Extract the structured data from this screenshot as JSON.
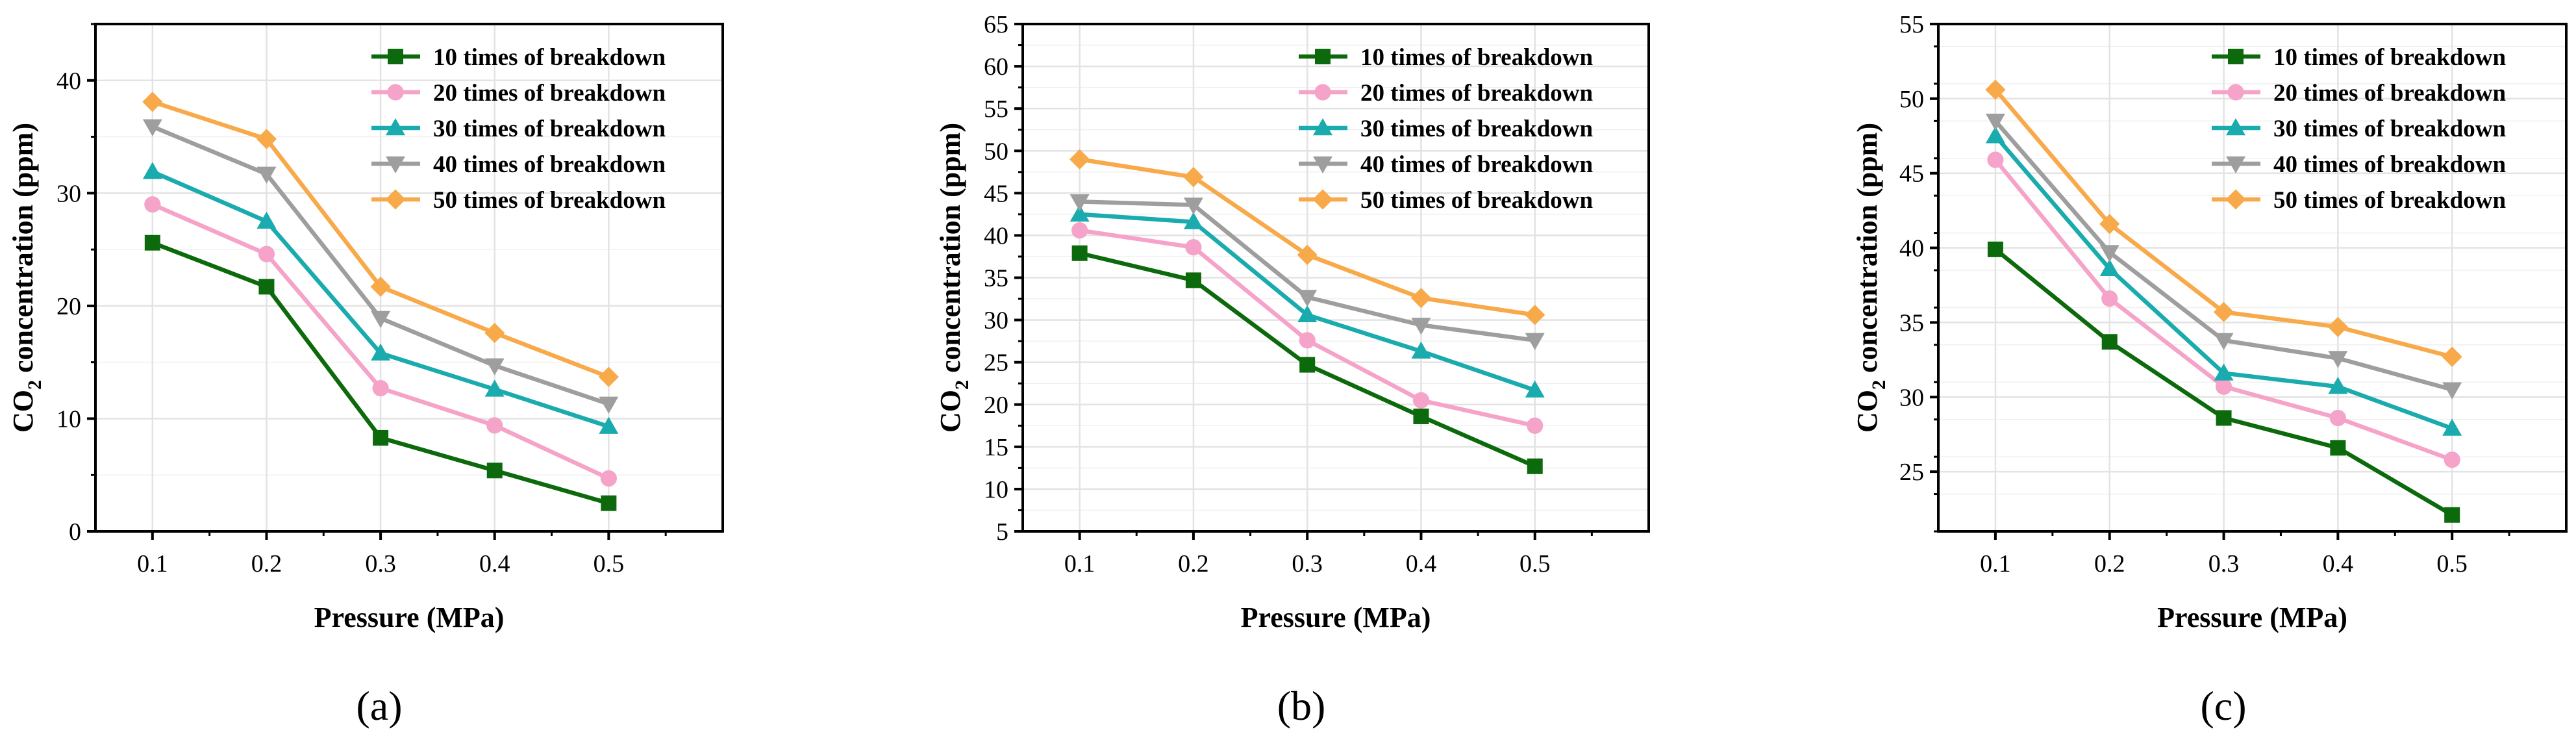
{
  "chart_data": [
    {
      "type": "line",
      "panel_label": "(a)",
      "xlabel": "Pressure (MPa)",
      "ylabel_main": "CO",
      "ylabel_sub": "2",
      "ylabel_rest": " concentration (ppm)",
      "x": [
        0.1,
        0.2,
        0.3,
        0.4,
        0.5
      ],
      "x_tick_labels": [
        "0.1",
        "0.2",
        "0.3",
        "0.4",
        "0.5"
      ],
      "xlim": [
        0.05,
        0.6
      ],
      "ylim": [
        0,
        45
      ],
      "y_ticks": [
        0,
        10,
        20,
        30,
        40
      ],
      "y_tick_labels": [
        "0",
        "10",
        "20",
        "30",
        "40"
      ],
      "legend_position": "top-right",
      "series": [
        {
          "name": "10 times of breakdown",
          "values": [
            25.6,
            21.7,
            8.3,
            5.4,
            2.5
          ]
        },
        {
          "name": "20 times of breakdown",
          "values": [
            29.0,
            24.6,
            12.7,
            9.4,
            4.7
          ]
        },
        {
          "name": "30 times of breakdown",
          "values": [
            31.9,
            27.5,
            15.8,
            12.6,
            9.3
          ]
        },
        {
          "name": "40 times of breakdown",
          "values": [
            35.9,
            31.7,
            18.9,
            14.7,
            11.3
          ]
        },
        {
          "name": "50 times of breakdown",
          "values": [
            38.1,
            34.8,
            21.7,
            17.6,
            13.7
          ]
        }
      ]
    },
    {
      "type": "line",
      "panel_label": "(b)",
      "xlabel": "Pressure (MPa)",
      "ylabel_main": "CO",
      "ylabel_sub": "2",
      "ylabel_rest": " concentration (ppm)",
      "x": [
        0.1,
        0.2,
        0.3,
        0.4,
        0.5
      ],
      "x_tick_labels": [
        "0.1",
        "0.2",
        "0.3",
        "0.4",
        "0.5"
      ],
      "xlim": [
        0.05,
        0.6
      ],
      "ylim": [
        5,
        65
      ],
      "y_ticks": [
        5,
        10,
        15,
        20,
        25,
        30,
        35,
        40,
        45,
        50,
        55,
        60,
        65
      ],
      "y_tick_labels": [
        "5",
        "10",
        "15",
        "20",
        "25",
        "30",
        "35",
        "40",
        "45",
        "50",
        "55",
        "60",
        "65"
      ],
      "legend_position": "top-right",
      "series": [
        {
          "name": "10 times of breakdown",
          "values": [
            37.9,
            34.7,
            24.7,
            18.6,
            12.7
          ]
        },
        {
          "name": "20 times of breakdown",
          "values": [
            40.6,
            38.6,
            27.6,
            20.5,
            17.5
          ]
        },
        {
          "name": "30 times of breakdown",
          "values": [
            42.5,
            41.6,
            30.6,
            26.3,
            21.7
          ]
        },
        {
          "name": "40 times of breakdown",
          "values": [
            44.0,
            43.6,
            32.7,
            29.4,
            27.6
          ]
        },
        {
          "name": "50 times of breakdown",
          "values": [
            49.0,
            46.9,
            37.7,
            32.6,
            30.6
          ]
        }
      ]
    },
    {
      "type": "line",
      "panel_label": "(c)",
      "xlabel": "Pressure (MPa)",
      "ylabel_main": "CO",
      "ylabel_sub": "2",
      "ylabel_rest": " concentration (ppm)",
      "x": [
        0.1,
        0.2,
        0.3,
        0.4,
        0.5
      ],
      "x_tick_labels": [
        "0.1",
        "0.2",
        "0.3",
        "0.4",
        "0.5"
      ],
      "xlim": [
        0.05,
        0.6
      ],
      "ylim": [
        21,
        55
      ],
      "y_ticks": [
        25,
        30,
        35,
        40,
        45,
        50,
        55
      ],
      "y_tick_labels": [
        "25",
        "30",
        "35",
        "40",
        "45",
        "50",
        "55"
      ],
      "legend_position": "top-right",
      "series": [
        {
          "name": "10 times of breakdown",
          "values": [
            39.9,
            33.7,
            28.6,
            26.6,
            22.1
          ]
        },
        {
          "name": "20 times of breakdown",
          "values": [
            45.9,
            36.6,
            30.7,
            28.6,
            25.8
          ]
        },
        {
          "name": "30 times of breakdown",
          "values": [
            47.5,
            38.6,
            31.6,
            30.7,
            27.9
          ]
        },
        {
          "name": "40 times of breakdown",
          "values": [
            48.5,
            39.7,
            33.8,
            32.6,
            30.5
          ]
        },
        {
          "name": "50 times of breakdown",
          "values": [
            50.6,
            41.6,
            35.7,
            34.7,
            32.7
          ]
        }
      ]
    }
  ],
  "style": {
    "series_colors": [
      "#0c6a0c",
      "#f5a3c8",
      "#1aabae",
      "#9e9e9e",
      "#f8a94a"
    ],
    "series_markers": [
      "square",
      "circle",
      "triangle-up",
      "triangle-down",
      "diamond"
    ],
    "grid_color": "#e3e3e3",
    "axis_color": "#000000"
  }
}
